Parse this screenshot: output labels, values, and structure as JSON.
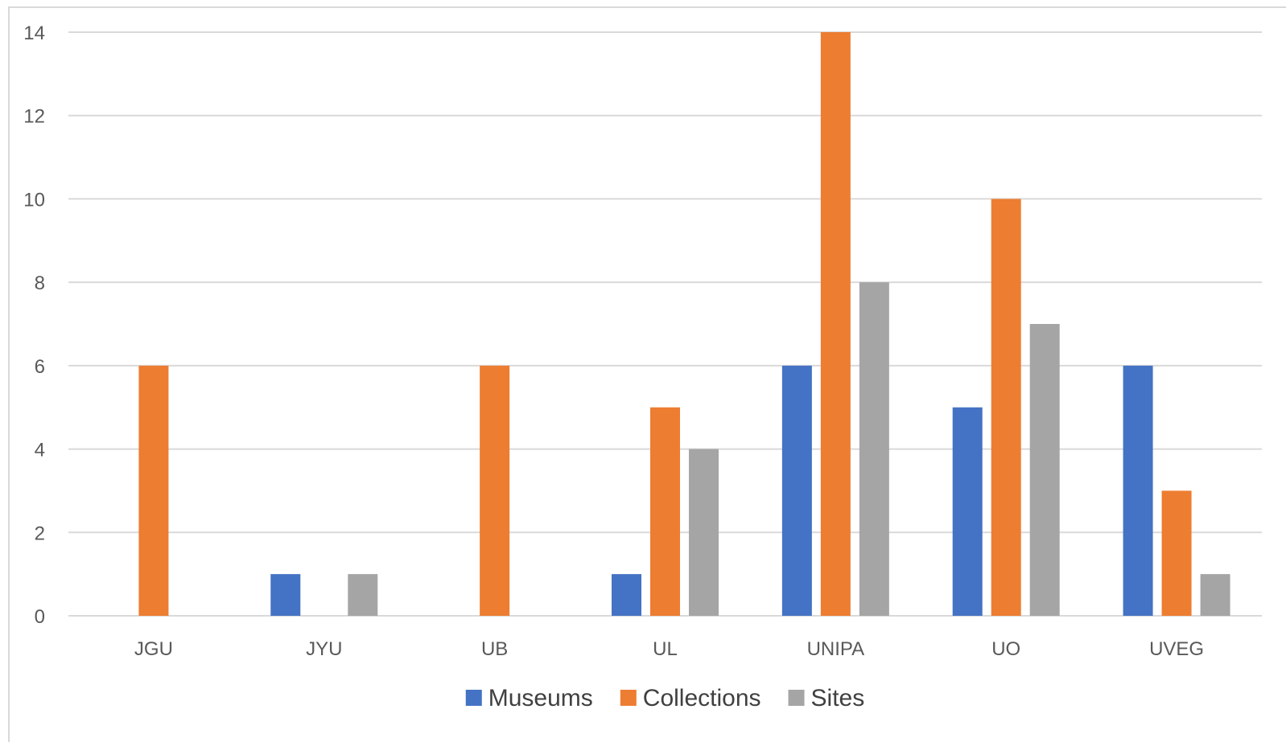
{
  "chart_data": {
    "type": "bar",
    "categories": [
      "JGU",
      "JYU",
      "UB",
      "UL",
      "UNIPA",
      "UO",
      "UVEG"
    ],
    "series": [
      {
        "name": "Museums",
        "color": "#4472c4",
        "values": [
          0,
          1,
          0,
          1,
          6,
          5,
          6
        ]
      },
      {
        "name": "Collections",
        "color": "#ed7d31",
        "values": [
          6,
          0,
          6,
          5,
          14,
          10,
          3
        ]
      },
      {
        "name": "Sites",
        "color": "#a5a5a5",
        "values": [
          0,
          1,
          0,
          4,
          8,
          7,
          1
        ]
      }
    ],
    "ylim": [
      0,
      14
    ],
    "yticks": [
      0,
      2,
      4,
      6,
      8,
      10,
      12,
      14
    ],
    "ytick_labels": [
      "0",
      "2",
      "4",
      "6",
      "8",
      "10",
      "12",
      "14"
    ],
    "grid": true,
    "legend_position": "bottom",
    "title": "",
    "xlabel": "",
    "ylabel": ""
  }
}
